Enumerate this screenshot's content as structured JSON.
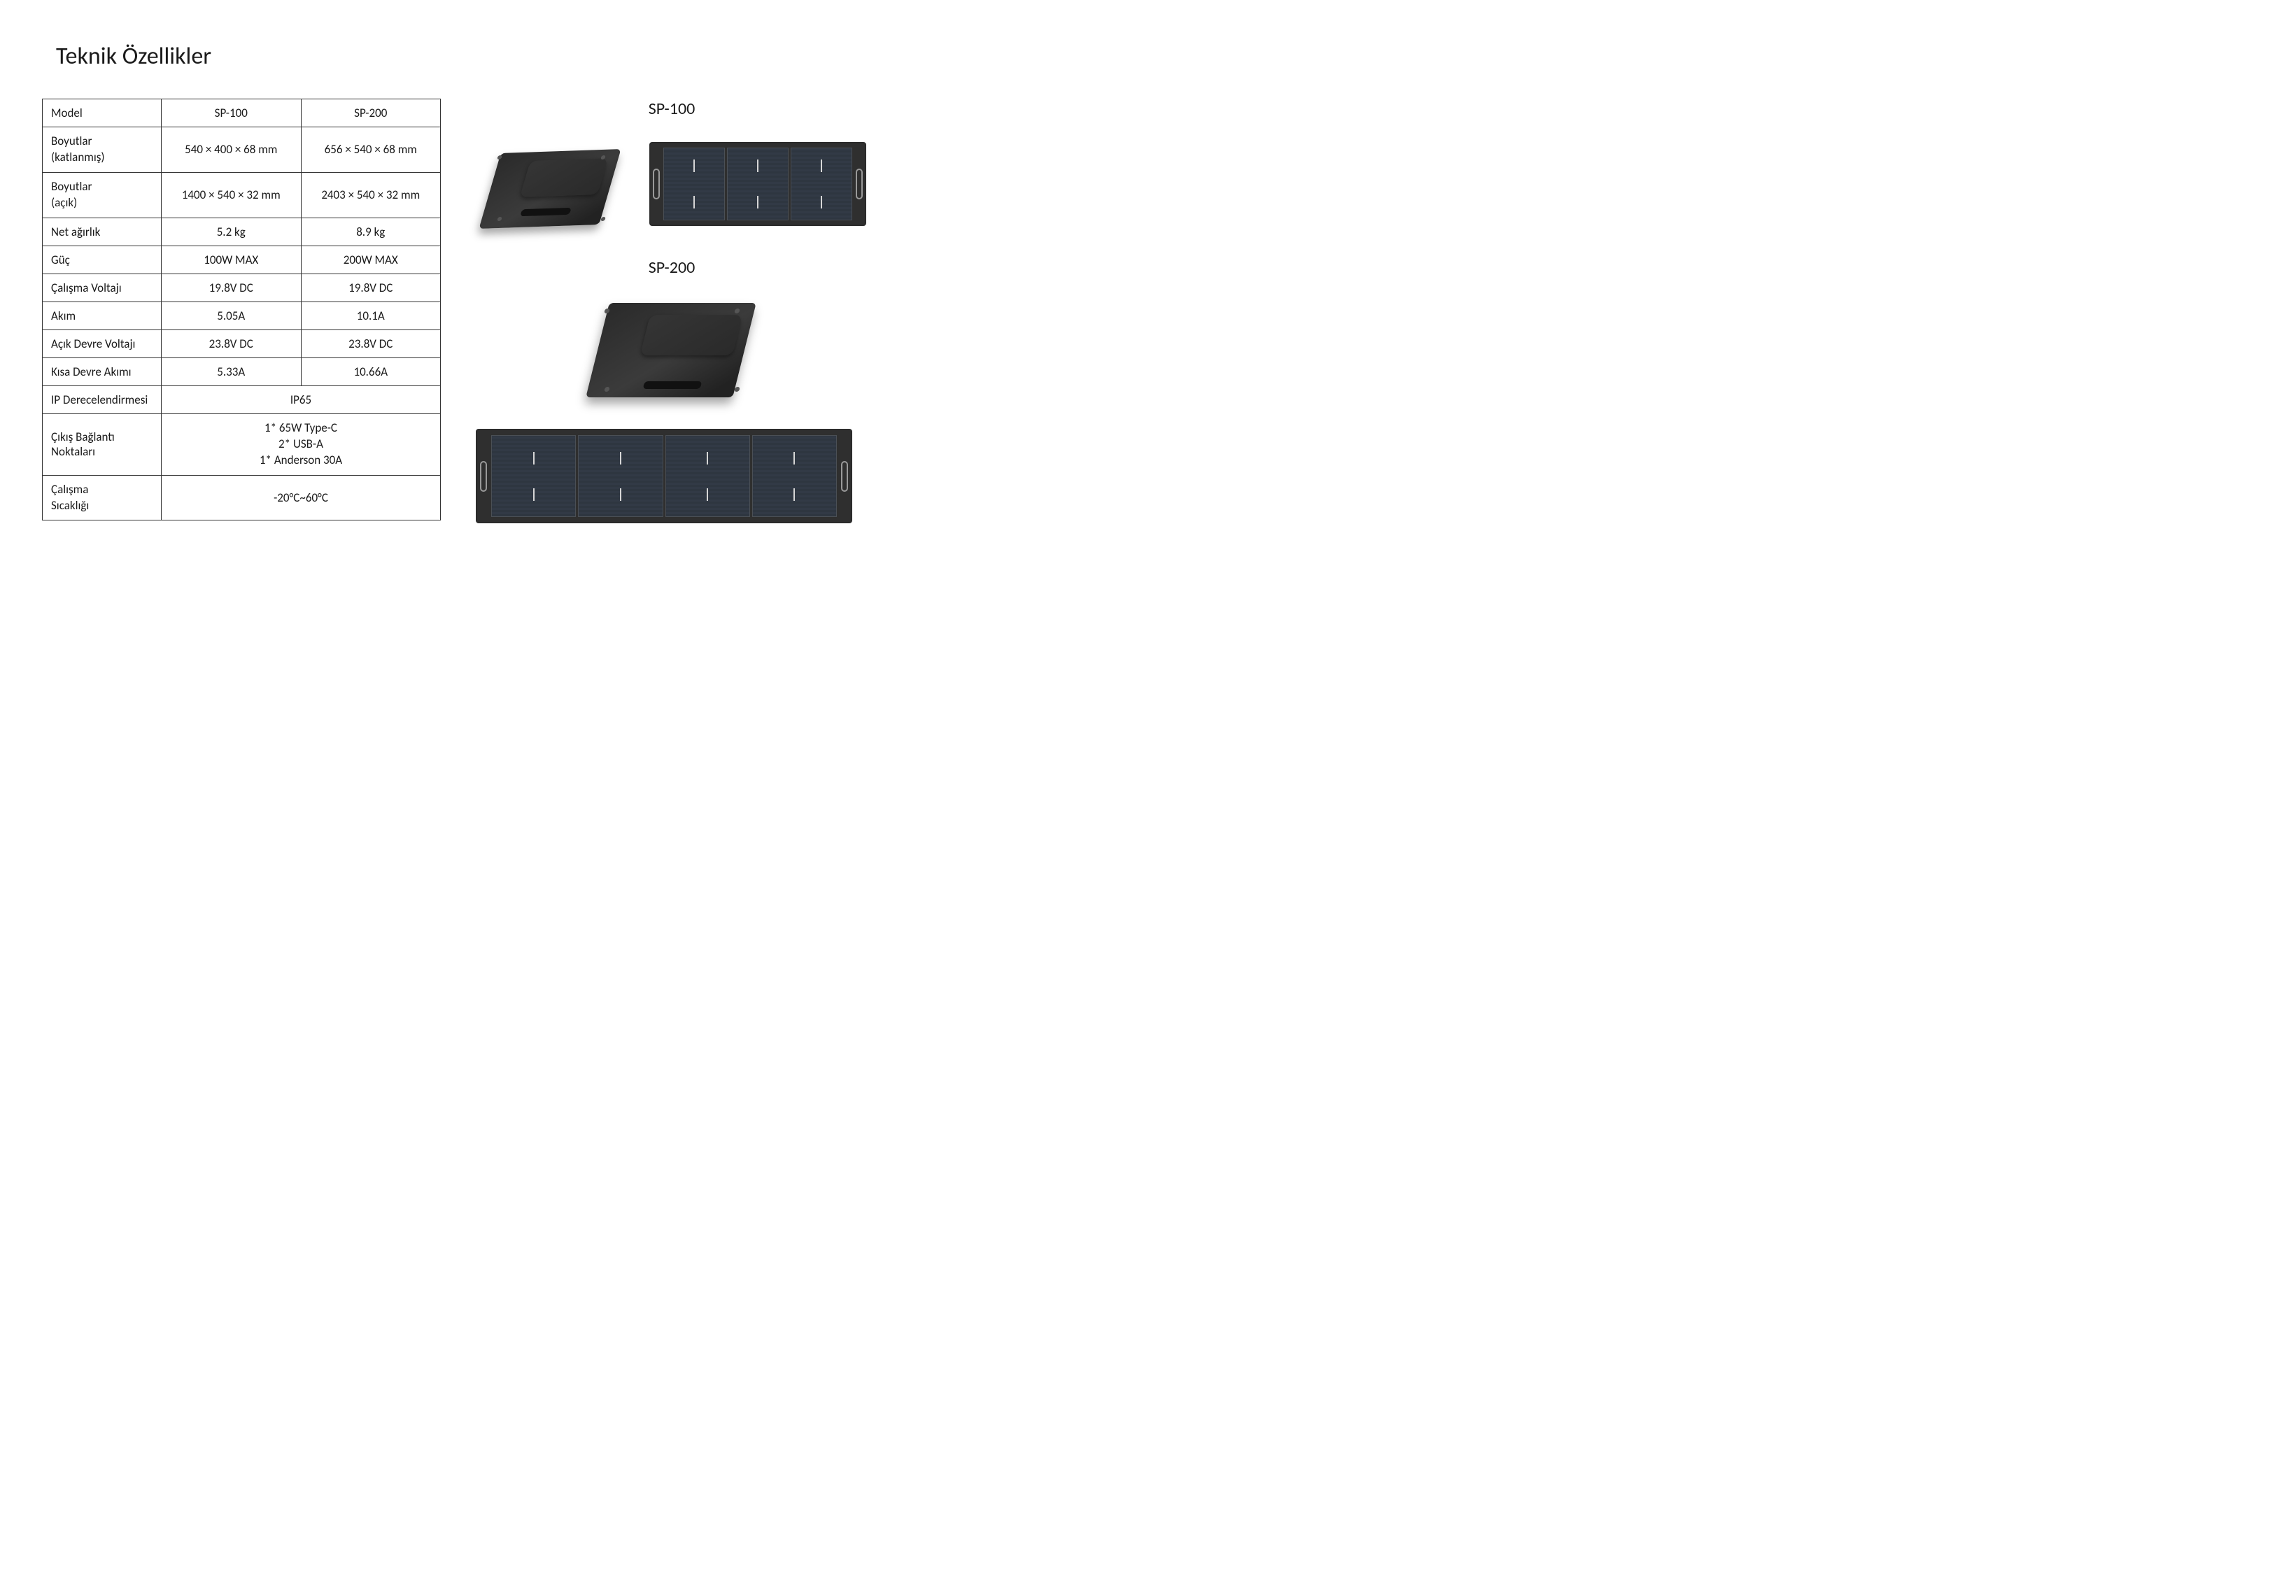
{
  "page": {
    "title": "Teknik Özellikler"
  },
  "table": {
    "columns": [
      "",
      "SP-100",
      "SP-200"
    ],
    "rows": [
      {
        "label": "Model",
        "sp100": "SP-100",
        "sp200": "SP-200"
      },
      {
        "label": "Boyutlar\n(katlanmış)",
        "sp100": "540 × 400 × 68 mm",
        "sp200": "656 × 540 × 68 mm"
      },
      {
        "label": "Boyutlar\n(açık)",
        "sp100": "1400 × 540 × 32 mm",
        "sp200": "2403 × 540 × 32 mm"
      },
      {
        "label": "Net ağırlık",
        "sp100": "5.2 kg",
        "sp200": "8.9 kg"
      },
      {
        "label": "Güç",
        "sp100": "100W MAX",
        "sp200": "200W MAX"
      },
      {
        "label": "Çalışma Voltajı",
        "sp100": "19.8V DC",
        "sp200": "19.8V DC"
      },
      {
        "label": "Akım",
        "sp100": "5.05A",
        "sp200": "10.1A"
      },
      {
        "label": "Açık Devre Voltajı",
        "sp100": "23.8V DC",
        "sp200": "23.8V DC"
      },
      {
        "label": "Kısa Devre Akımı",
        "sp100": "5.33A",
        "sp200": "10.66A"
      },
      {
        "label": "IP Derecelendirmesi",
        "merged": "IP65"
      },
      {
        "label": "Çıkış Bağlantı Noktaları",
        "merged": "1* 65W Type-C\n2* USB-A\n1* Anderson 30A"
      },
      {
        "label": "Çalışma\nSıcaklığı",
        "merged": "-20°C~60°C"
      }
    ],
    "border_color": "#333333",
    "font_size": 17
  },
  "products": {
    "sp100_title": "SP-100",
    "sp200_title": "SP-200"
  },
  "style": {
    "background": "#ffffff",
    "text_color": "#1a1a1a",
    "title_fontsize": 34,
    "product_title_fontsize": 24,
    "panel_body_color": "#2f2f2f",
    "panel_cell_color": "#2e3640",
    "folded_color_dark": "#2a2a2a",
    "folded_color_light": "#3b3b3b"
  }
}
